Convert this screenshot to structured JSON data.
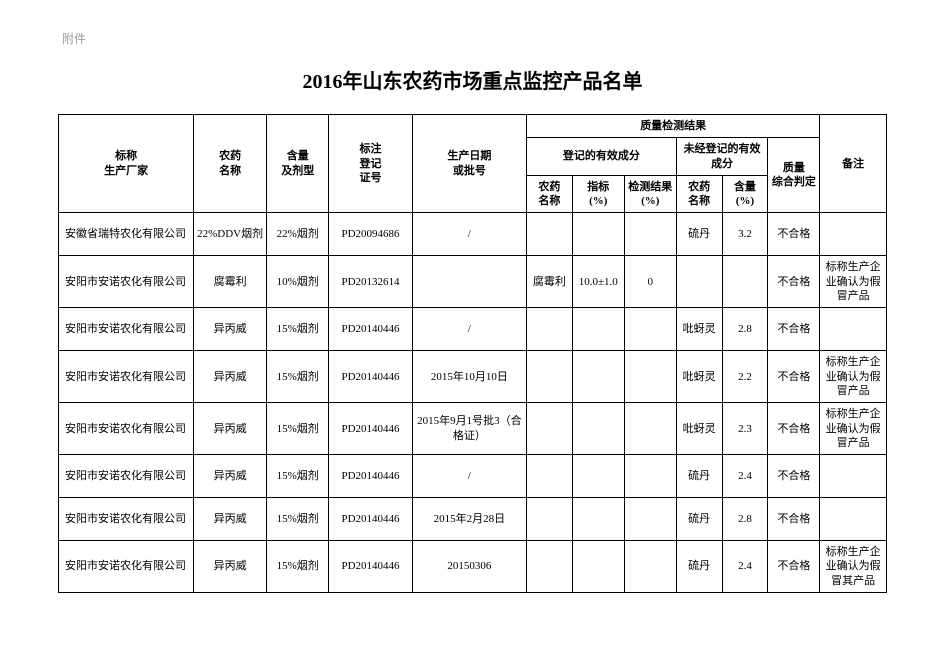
{
  "attachment_label": "附件",
  "title": "2016年山东农药市场重点监控产品名单",
  "header": {
    "manufacturer": "标称\n生产厂家",
    "pesticide_name": "农药\n名称",
    "content_type": "含量\n及剂型",
    "reg_no": "标注\n登记\n证号",
    "prod_date": "生产日期\n或批号",
    "quality_group": "质量检测结果",
    "registered_group": "登记的有效成分",
    "unregistered_group": "未经登记的有效成分",
    "col_a": "农药\n名称",
    "col_b": "指标\n(%)",
    "col_c": "检测结果\n(%)",
    "col_d": "农药\n名称",
    "col_e": "含量\n(%)",
    "judgement": "质量\n综合判定",
    "note": "备注"
  },
  "rows": [
    {
      "mfr": "安徽省瑞特农化有限公司",
      "name": "22%DDV烟剂",
      "cont": "22%烟剂",
      "reg": "PD20094686",
      "date": "/",
      "a": "",
      "b": "",
      "c": "",
      "d": "硫丹",
      "e": "3.2",
      "jdg": "不合格",
      "note": ""
    },
    {
      "mfr": "安阳市安诺农化有限公司",
      "name": "腐霉利",
      "cont": "10%烟剂",
      "reg": "PD20132614",
      "date": "",
      "a": "腐霉利",
      "b": "10.0±1.0",
      "c": "0",
      "d": "",
      "e": "",
      "jdg": "不合格",
      "note": "标称生产企业确认为假冒产品"
    },
    {
      "mfr": "安阳市安诺农化有限公司",
      "name": "异丙威",
      "cont": "15%烟剂",
      "reg": "PD20140446",
      "date": "/",
      "a": "",
      "b": "",
      "c": "",
      "d": "吡蚜灵",
      "e": "2.8",
      "jdg": "不合格",
      "note": ""
    },
    {
      "mfr": "安阳市安诺农化有限公司",
      "name": "异丙威",
      "cont": "15%烟剂",
      "reg": "PD20140446",
      "date": "2015年10月10日",
      "a": "",
      "b": "",
      "c": "",
      "d": "吡蚜灵",
      "e": "2.2",
      "jdg": "不合格",
      "note": "标称生产企业确认为假冒产品"
    },
    {
      "mfr": "安阳市安诺农化有限公司",
      "name": "异丙威",
      "cont": "15%烟剂",
      "reg": "PD20140446",
      "date": "2015年9月1号批3（合格证）",
      "a": "",
      "b": "",
      "c": "",
      "d": "吡蚜灵",
      "e": "2.3",
      "jdg": "不合格",
      "note": "标称生产企业确认为假冒产品"
    },
    {
      "mfr": "安阳市安诺农化有限公司",
      "name": "异丙威",
      "cont": "15%烟剂",
      "reg": "PD20140446",
      "date": "/",
      "a": "",
      "b": "",
      "c": "",
      "d": "硫丹",
      "e": "2.4",
      "jdg": "不合格",
      "note": ""
    },
    {
      "mfr": "安阳市安诺农化有限公司",
      "name": "异丙威",
      "cont": "15%烟剂",
      "reg": "PD20140446",
      "date": "2015年2月28日",
      "a": "",
      "b": "",
      "c": "",
      "d": "硫丹",
      "e": "2.8",
      "jdg": "不合格",
      "note": ""
    },
    {
      "mfr": "安阳市安诺农化有限公司",
      "name": "异丙威",
      "cont": "15%烟剂",
      "reg": "PD20140446",
      "date": "20150306",
      "a": "",
      "b": "",
      "c": "",
      "d": "硫丹",
      "e": "2.4",
      "jdg": "不合格",
      "note": "标称生产企业确认为假冒其产品"
    }
  ]
}
